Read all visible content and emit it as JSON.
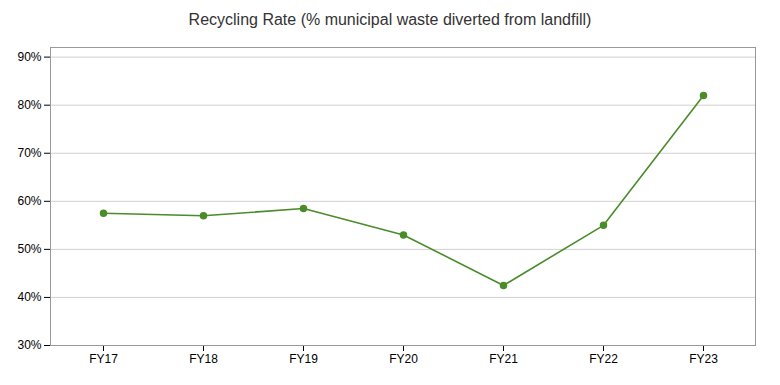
{
  "chart_data": {
    "type": "line",
    "title": "Recycling Rate (% municipal waste diverted from landfill)",
    "categories": [
      "FY17",
      "FY18",
      "FY19",
      "FY20",
      "FY21",
      "FY22",
      "FY23"
    ],
    "values": [
      57.5,
      57.0,
      58.5,
      53.0,
      42.5,
      55.0,
      82.0
    ],
    "color": "#4a8c2a",
    "marker": "circle",
    "ylim": [
      30,
      92
    ],
    "yticks": [
      {
        "value": 30,
        "label": "30%"
      },
      {
        "value": 40,
        "label": "40%"
      },
      {
        "value": 50,
        "label": "50%"
      },
      {
        "value": 60,
        "label": "60%"
      },
      {
        "value": 70,
        "label": "70%"
      },
      {
        "value": 80,
        "label": "80%"
      },
      {
        "value": 90,
        "label": "90%"
      }
    ],
    "grid": true
  }
}
